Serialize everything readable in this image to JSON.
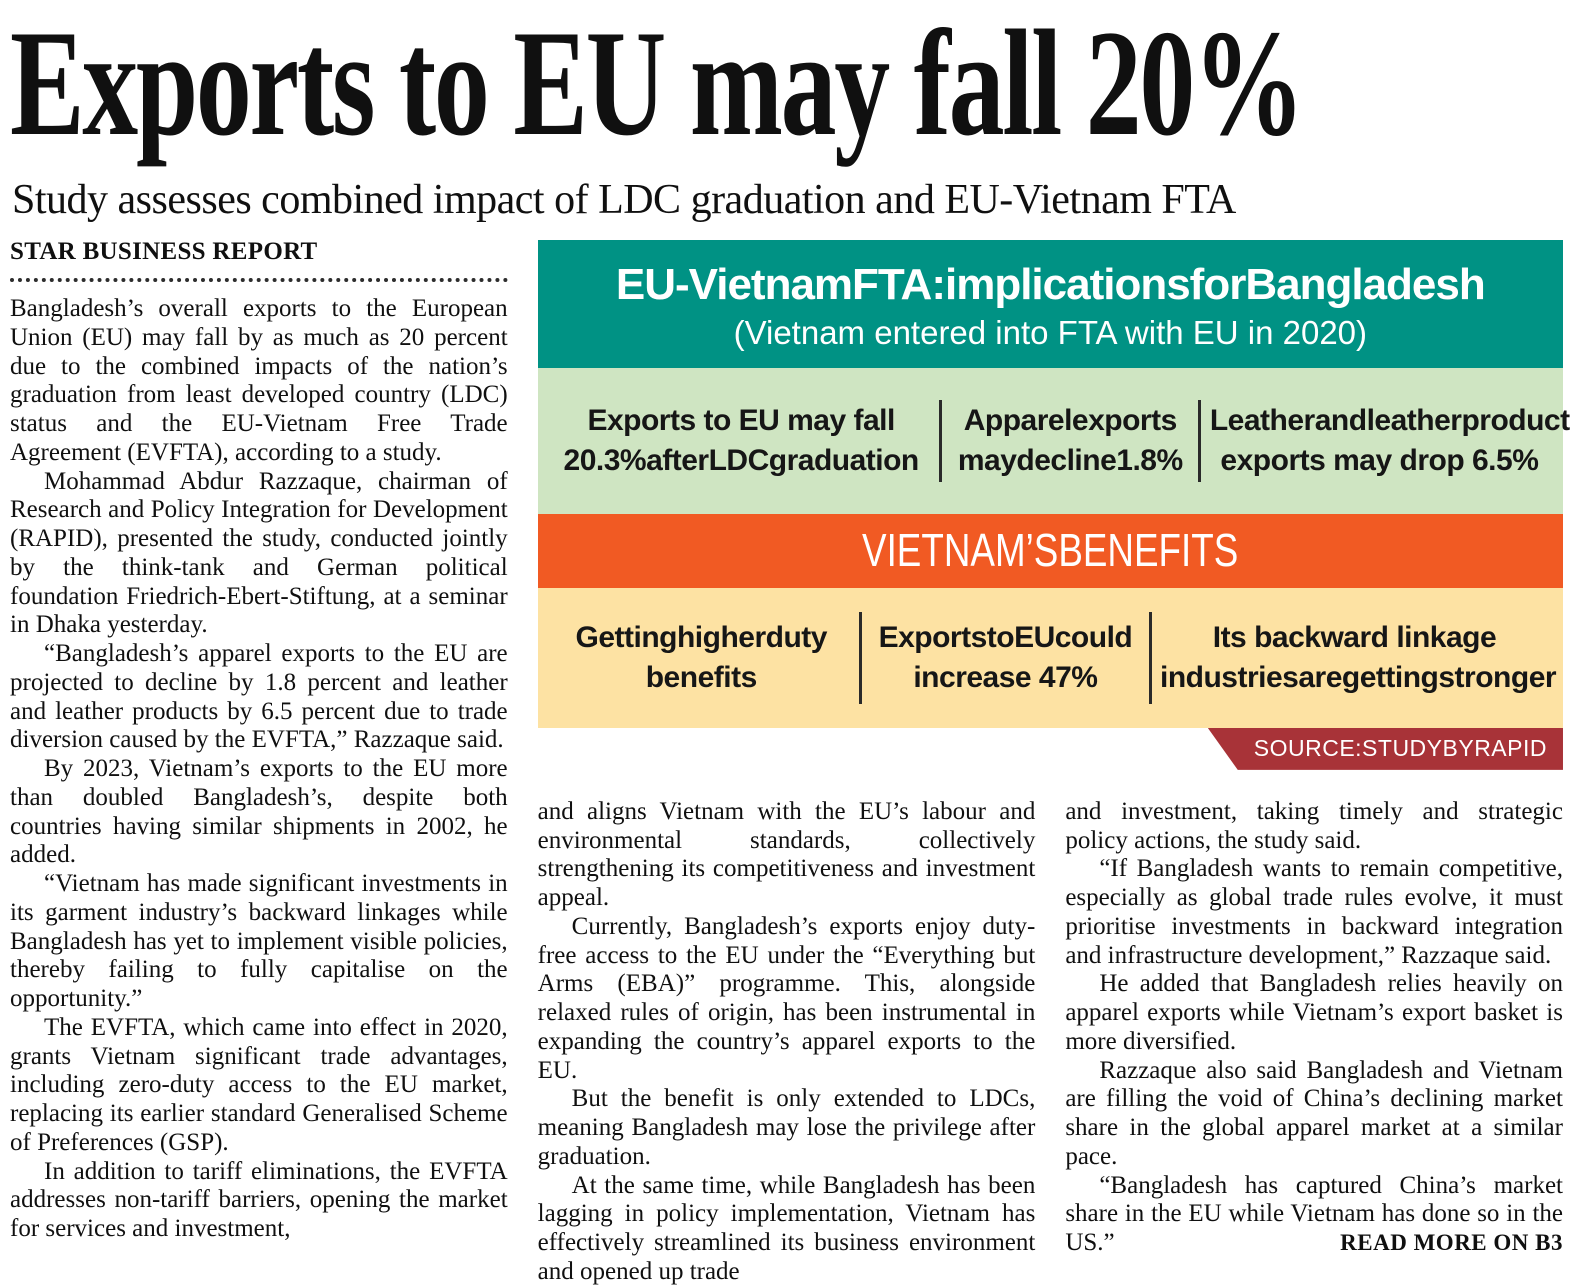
{
  "header": {
    "headline": "Exports to EU may fall 20%",
    "subheadline": "Study assesses combined impact of LDC graduation and EU-Vietnam FTA",
    "byline": "STAR BUSINESS REPORT",
    "read_more": "READ MORE ON B3"
  },
  "article": {
    "left": [
      "Bangladesh’s overall exports to the European Union (EU) may fall by as much as 20 percent due to the combined impacts of the nation’s graduation from least developed country (LDC) status and the EU-Vietnam Free Trade Agreement (EVFTA), according to a study.",
      "Mohammad Abdur Razzaque, chairman of Research and Policy Integration for Development (RAPID), presented the study, conducted jointly by the think-tank and German political foundation Friedrich-Ebert-Stiftung, at a seminar in Dhaka yesterday.",
      "“Bangladesh’s apparel exports to the EU are projected to decline by 1.8 percent and leather and leather products by 6.5 percent due to trade diversion caused by the EVFTA,” Razzaque said.",
      "By 2023, Vietnam’s exports to the EU more than doubled Bangladesh’s, despite both countries having similar shipments in 2002, he added.",
      "“Vietnam has made significant investments in its garment industry’s backward linkages while Bangladesh has yet to implement visible policies, thereby failing to fully capitalise on the opportunity.”",
      "The EVFTA, which came into effect in 2020, grants Vietnam significant trade advantages, including zero-duty access to the EU market, replacing its earlier standard Generalised Scheme of Preferences (GSP).",
      "In addition to tariff eliminations, the EVFTA addresses non-tariff barriers, opening the market for services and investment,"
    ],
    "middle": [
      "and aligns Vietnam with the EU’s labour and environmental standards, collectively strengthening its competitiveness and investment appeal.",
      "Currently, Bangladesh’s exports enjoy duty-free access to the EU under the “Everything but Arms (EBA)” programme. This, alongside relaxed rules of origin, has been instrumental in expanding the country’s apparel exports to the EU.",
      "But the benefit is only extended to LDCs, meaning Bangladesh may lose the privilege after graduation.",
      "At the same time, while Bangladesh has been lagging in policy implementation, Vietnam has effectively streamlined its business environment and opened up trade"
    ],
    "right": [
      "and investment, taking timely and strategic policy actions, the study said.",
      "“If Bangladesh wants to remain competitive, especially as global trade rules evolve, it must prioritise investments in backward integration and infrastructure development,” Razzaque said.",
      "He added that Bangladesh relies heavily on apparel exports while Vietnam’s export basket is more diversified.",
      "Razzaque also said Bangladesh and Vietnam are filling the void of China’s declining market share in the global apparel market at a similar pace.",
      "“Bangladesh has captured China’s market share in the EU while Vietnam has done so in the US.”"
    ]
  },
  "infographic": {
    "title": "EU-VietnamFTA:implicationsforBangladesh",
    "subtitle": "(Vietnam entered into FTA with EU in 2020)",
    "impact_stats": [
      {
        "line1": "Exports to EU may fall",
        "line2": "20.3%afterLDCgraduation"
      },
      {
        "line1": "Apparelexports",
        "line2": "maydecline1.8%"
      },
      {
        "line1": "Leatherandleatherproduct",
        "line2": "exports may drop 6.5%"
      }
    ],
    "benefits_header": "VIETNAM’SBENEFITS",
    "benefits": [
      {
        "line1": "Gettinghigherduty",
        "line2": "benefits"
      },
      {
        "line1": "ExportstoEUcould",
        "line2": "increase 47%"
      },
      {
        "line1": "Its backward linkage",
        "line2": "industriesaregettingstronger"
      }
    ],
    "source": "SOURCE:STUDYBYRAPID",
    "colors": {
      "teal": "#009284",
      "light_green": "#cfe5c2",
      "orange": "#f15a23",
      "yellow": "#fde2a3",
      "source_red": "#a83338"
    }
  }
}
